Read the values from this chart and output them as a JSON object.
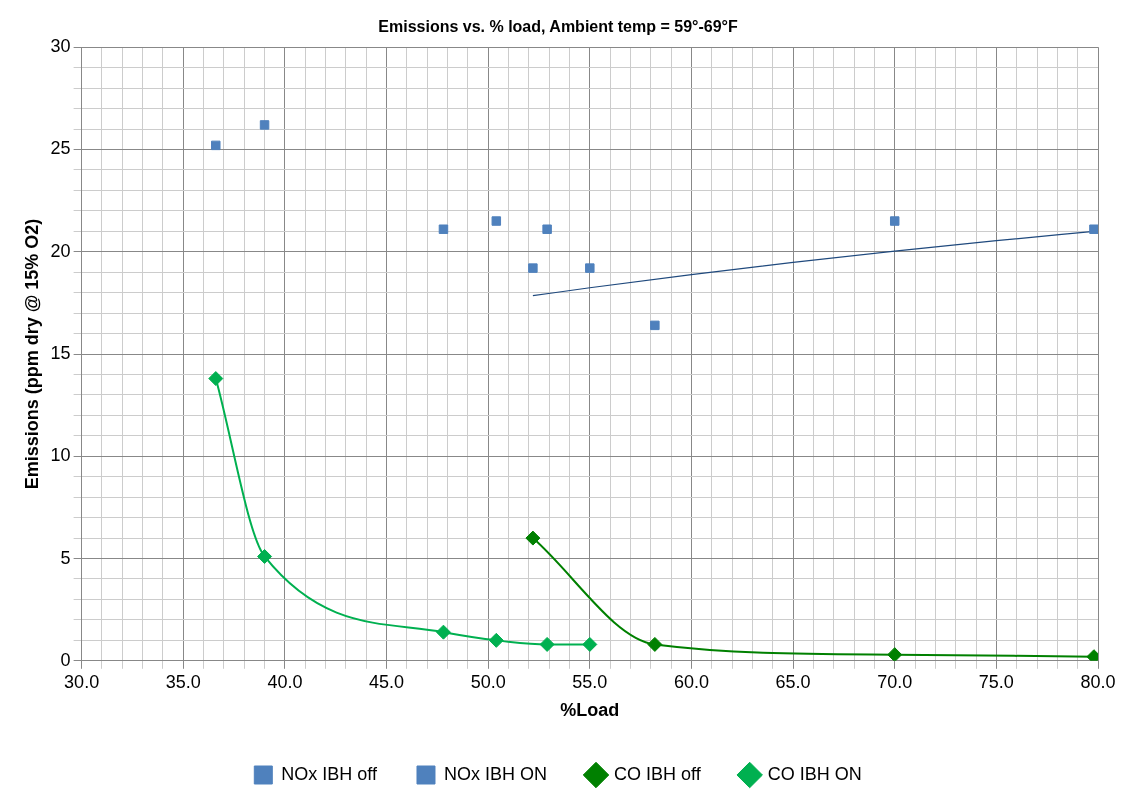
{
  "chart_data": {
    "type": "scatter",
    "title": "Emissions vs. % load, Ambient temp = 59°-69°F",
    "xlabel": "%Load",
    "ylabel": "Emissions (ppm dry @ 15% O2)",
    "xlim": [
      30,
      80
    ],
    "ylim": [
      0,
      30
    ],
    "xticks": [
      {
        "value": 30,
        "label": "30.0"
      },
      {
        "value": 31,
        "label": null
      },
      {
        "value": 32,
        "label": null
      },
      {
        "value": 33,
        "label": null
      },
      {
        "value": 34,
        "label": null
      },
      {
        "value": 35,
        "label": "35.0"
      },
      {
        "value": 36,
        "label": null
      },
      {
        "value": 37,
        "label": null
      },
      {
        "value": 38,
        "label": null
      },
      {
        "value": 39,
        "label": null
      },
      {
        "value": 40,
        "label": "40.0"
      },
      {
        "value": 41,
        "label": null
      },
      {
        "value": 42,
        "label": null
      },
      {
        "value": 43,
        "label": null
      },
      {
        "value": 44,
        "label": null
      },
      {
        "value": 45,
        "label": "45.0"
      },
      {
        "value": 46,
        "label": null
      },
      {
        "value": 47,
        "label": null
      },
      {
        "value": 48,
        "label": null
      },
      {
        "value": 49,
        "label": null
      },
      {
        "value": 50,
        "label": "50.0"
      },
      {
        "value": 51,
        "label": null
      },
      {
        "value": 52,
        "label": null
      },
      {
        "value": 53,
        "label": null
      },
      {
        "value": 54,
        "label": null
      },
      {
        "value": 55,
        "label": "55.0"
      },
      {
        "value": 56,
        "label": null
      },
      {
        "value": 57,
        "label": null
      },
      {
        "value": 58,
        "label": null
      },
      {
        "value": 59,
        "label": null
      },
      {
        "value": 60,
        "label": "60.0"
      },
      {
        "value": 61,
        "label": null
      },
      {
        "value": 62,
        "label": null
      },
      {
        "value": 63,
        "label": null
      },
      {
        "value": 64,
        "label": null
      },
      {
        "value": 65,
        "label": "65.0"
      },
      {
        "value": 66,
        "label": null
      },
      {
        "value": 67,
        "label": null
      },
      {
        "value": 68,
        "label": null
      },
      {
        "value": 69,
        "label": null
      },
      {
        "value": 70,
        "label": "70.0"
      },
      {
        "value": 71,
        "label": null
      },
      {
        "value": 72,
        "label": null
      },
      {
        "value": 73,
        "label": null
      },
      {
        "value": 74,
        "label": null
      },
      {
        "value": 75,
        "label": "75.0"
      },
      {
        "value": 76,
        "label": null
      },
      {
        "value": 77,
        "label": null
      },
      {
        "value": 78,
        "label": null
      },
      {
        "value": 79,
        "label": null
      },
      {
        "value": 80,
        "label": "80.0"
      }
    ],
    "yticks": [
      0,
      {
        "value": 1,
        "label": null
      },
      {
        "value": 2,
        "label": null
      },
      {
        "value": 3,
        "label": null
      },
      {
        "value": 4,
        "label": null
      },
      5,
      {
        "value": 6,
        "label": null
      },
      {
        "value": 7,
        "label": null
      },
      {
        "value": 8,
        "label": null
      },
      {
        "value": 9,
        "label": null
      },
      10,
      {
        "value": 11,
        "label": null
      },
      {
        "value": 12,
        "label": null
      },
      {
        "value": 13,
        "label": null
      },
      {
        "value": 14,
        "label": null
      },
      15,
      {
        "value": 16,
        "label": null
      },
      {
        "value": 17,
        "label": null
      },
      {
        "value": 18,
        "label": null
      },
      {
        "value": 19,
        "label": null
      },
      20,
      {
        "value": 21,
        "label": null
      },
      {
        "value": 22,
        "label": null
      },
      {
        "value": 23,
        "label": null
      },
      {
        "value": 24,
        "label": null
      },
      25,
      {
        "value": 26,
        "label": null
      },
      {
        "value": 27,
        "label": null
      },
      {
        "value": 28,
        "label": null
      },
      {
        "value": 29,
        "label": null
      },
      30
    ],
    "grid": true,
    "legend": "bottom",
    "series": [
      {
        "name": "NOx IBH off",
        "type": "scatter",
        "marker": "square",
        "color": "#4f81bd",
        "x": [
          52.2,
          58.2,
          70.0,
          79.8
        ],
        "values": [
          19.2,
          16.4,
          21.5,
          21.1
        ]
      },
      {
        "name": "NOx IBH ON",
        "type": "scatter",
        "marker": "square",
        "color": "#4f81bd",
        "x": [
          36.6,
          39.0,
          47.8,
          50.4,
          52.9,
          55.0
        ],
        "values": [
          25.2,
          26.2,
          21.1,
          21.5,
          21.1,
          19.2
        ]
      },
      {
        "name": "CO IBH off",
        "type": "line",
        "marker": "diamond",
        "color": "#008000",
        "x": [
          52.2,
          58.2,
          70.0,
          79.8
        ],
        "values": [
          6.0,
          0.8,
          0.3,
          0.2
        ]
      },
      {
        "name": "CO IBH ON",
        "type": "line",
        "marker": "diamond",
        "color": "#00b050",
        "x": [
          36.6,
          39.0,
          47.8,
          50.4,
          52.9,
          55.0
        ],
        "values": [
          13.8,
          5.1,
          1.4,
          1.0,
          0.8,
          0.8
        ]
      },
      {
        "type": "line",
        "marker": "none",
        "color": "#1f497d",
        "x": [
          52.2,
          55,
          60,
          65,
          70,
          75,
          79.8
        ],
        "values": [
          17.85,
          18.24,
          18.88,
          19.48,
          20.03,
          20.54,
          21.0
        ]
      }
    ]
  }
}
